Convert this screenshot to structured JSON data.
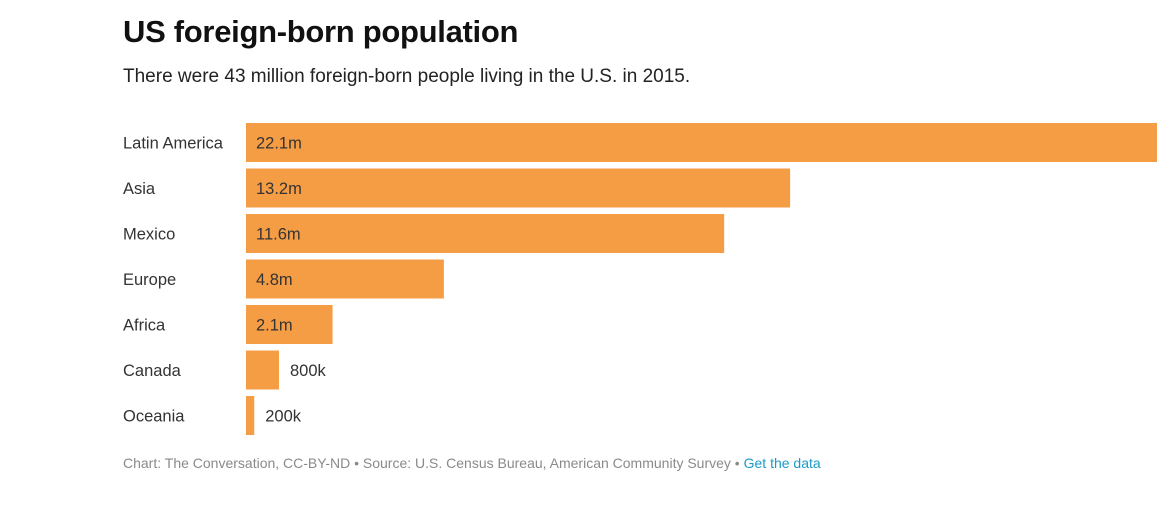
{
  "chart_data": {
    "type": "bar",
    "orientation": "horizontal",
    "title": "US foreign-born population",
    "subtitle": "There were 43 million foreign-born people living in the U.S. in 2015.",
    "categories": [
      "Latin America",
      "Asia",
      "Mexico",
      "Europe",
      "Africa",
      "Canada",
      "Oceania"
    ],
    "values": [
      22.1,
      13.2,
      11.6,
      4.8,
      2.1,
      0.8,
      0.2
    ],
    "value_labels": [
      "22.1m",
      "13.2m",
      "11.6m",
      "4.8m",
      "2.1m",
      "800k",
      "200k"
    ],
    "units": "millions",
    "xlabel": "",
    "ylabel": "",
    "xlim": [
      0,
      22.1
    ],
    "grid": false,
    "legend": "none",
    "bar_color": "#f59d45"
  },
  "footer": {
    "credit": "Chart: The Conversation, CC-BY-ND • Source: U.S. Census Bureau, American Community Survey • ",
    "link_label": "Get the data",
    "link_color": "#1a9bc7"
  }
}
